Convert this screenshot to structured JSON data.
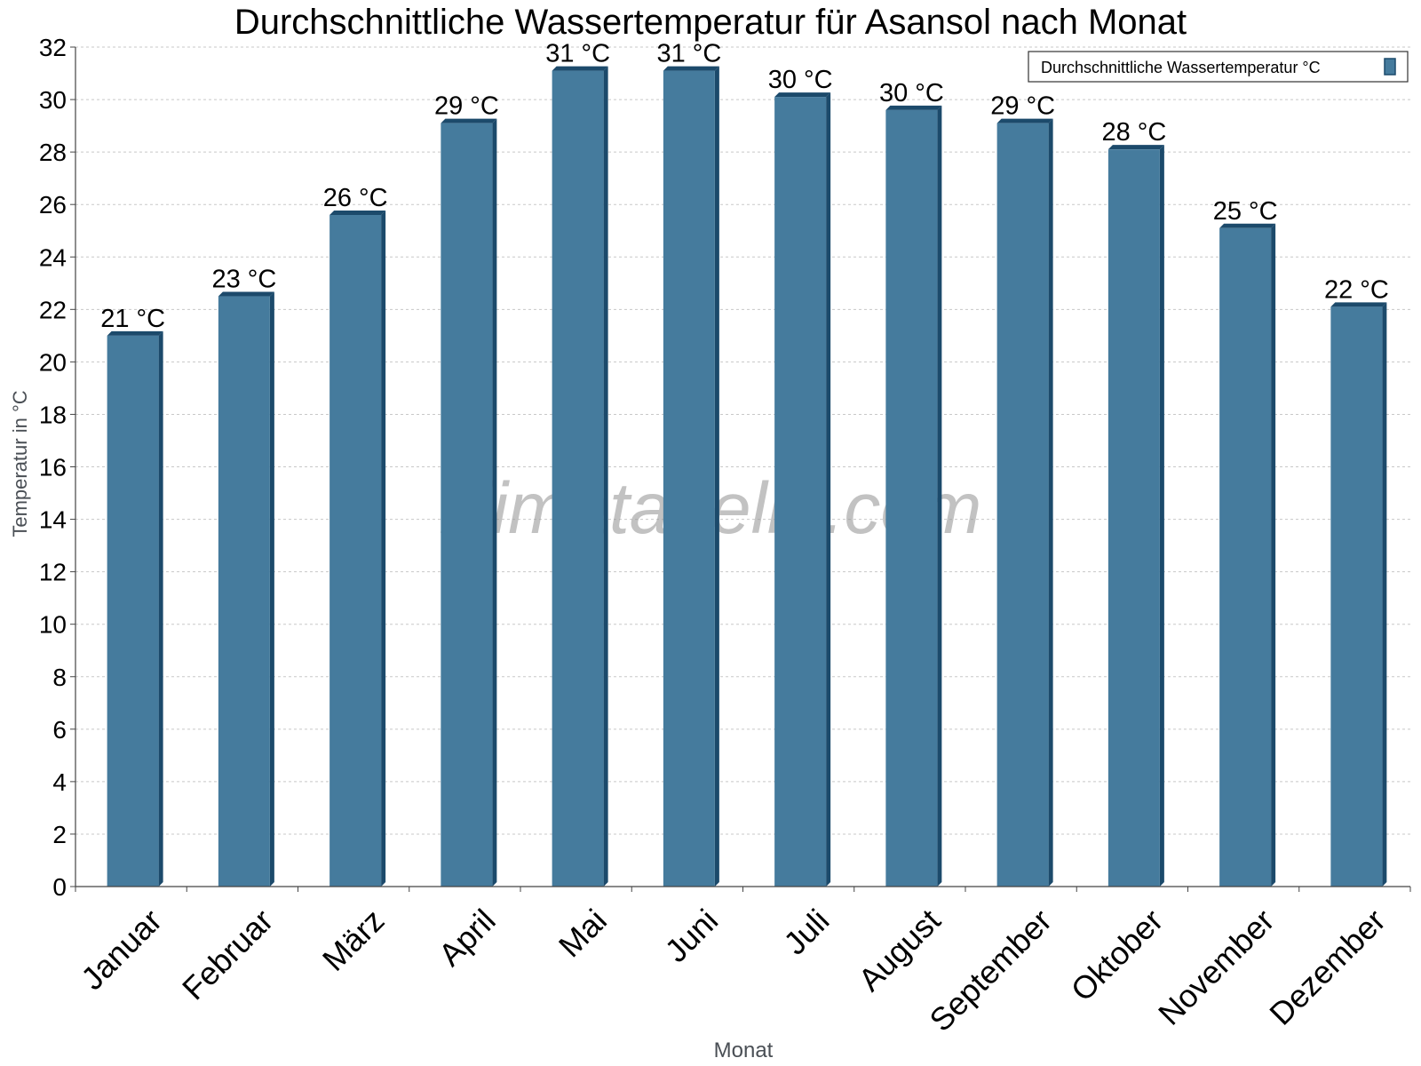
{
  "chart_data": {
    "type": "bar",
    "title": "Durchschnittliche Wassertemperatur für Asansol nach Monat",
    "xlabel": "Monat",
    "ylabel": "Temperatur in °C",
    "watermark": "klimatabelle.com",
    "ylim": [
      0,
      32
    ],
    "yticks": [
      "0",
      "2",
      "4",
      "6",
      "8",
      "10",
      "12",
      "14",
      "16",
      "18",
      "20",
      "22",
      "24",
      "26",
      "28",
      "30",
      "32"
    ],
    "grid": true,
    "legend_position": "top-right",
    "categories": [
      "Januar",
      "Februar",
      "März",
      "April",
      "Mai",
      "Juni",
      "Juli",
      "August",
      "September",
      "Oktober",
      "November",
      "Dezember"
    ],
    "series": [
      {
        "name": "Durchschnittliche Wassertemperatur °C",
        "color": "#457b9d",
        "values": [
          21,
          22.5,
          25.6,
          29.1,
          31.1,
          31.1,
          30.1,
          29.6,
          29.1,
          28.1,
          25.1,
          22.1
        ],
        "labels": [
          "21 °C",
          "23 °C",
          "26 °C",
          "29 °C",
          "31 °C",
          "31 °C",
          "30 °C",
          "30 °C",
          "29 °C",
          "28 °C",
          "25 °C",
          "22 °C"
        ]
      }
    ]
  }
}
